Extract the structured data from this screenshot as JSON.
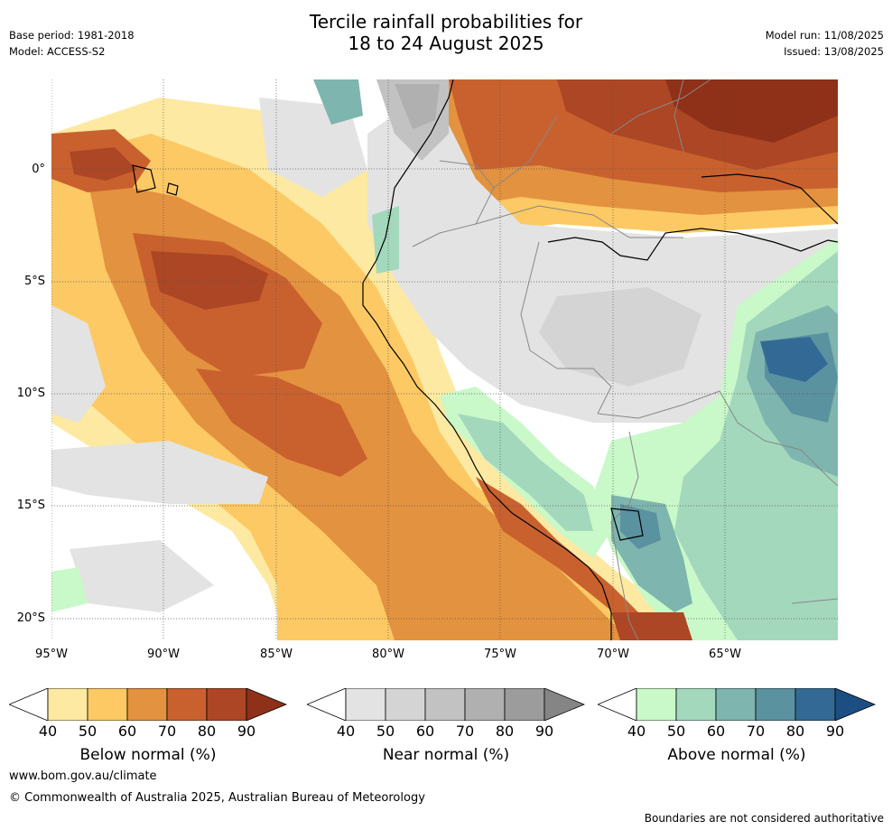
{
  "header": {
    "title_line1": "Tercile rainfall probabilities for",
    "title_line2": "18 to 24 August 2025",
    "base_period": "Base period: 1981-2018",
    "model": "Model: ACCESS-S2",
    "model_run": "Model run: 11/08/2025",
    "issued": "Issued: 13/08/2025"
  },
  "map": {
    "lat_labels": [
      "0°",
      "5°S",
      "10°S",
      "15°S",
      "20°S"
    ],
    "lon_labels": [
      "95°W",
      "90°W",
      "85°W",
      "80°W",
      "75°W",
      "70°W",
      "65°W"
    ],
    "colors": {
      "below": [
        "#fde9a1",
        "#fcc964",
        "#e3923f",
        "#c9612f",
        "#ad4624",
        "#8f3019"
      ],
      "near": [
        "#e3e3e3",
        "#d4d4d4",
        "#c2c2c2",
        "#b0b0b0",
        "#9c9c9c",
        "#858585"
      ],
      "above": [
        "#c9f8c9",
        "#a3d8bd",
        "#7eb5ae",
        "#5a92a0",
        "#336a95",
        "#1c4e84"
      ],
      "coast": "#000000",
      "border": "#888888",
      "grid": "#555555"
    }
  },
  "colorbars": [
    {
      "title": "Below normal (%)",
      "ticks": [
        "40",
        "50",
        "60",
        "70",
        "80",
        "90"
      ]
    },
    {
      "title": "Near normal (%)",
      "ticks": [
        "40",
        "50",
        "60",
        "70",
        "80",
        "90"
      ]
    },
    {
      "title": "Above normal (%)",
      "ticks": [
        "40",
        "50",
        "60",
        "70",
        "80",
        "90"
      ]
    }
  ],
  "footer": {
    "website": "www.bom.gov.au/climate",
    "copyright": "© Commonwealth of Australia 2025, Australian Bureau of Meteorology",
    "disclaimer": "Boundaries are not considered authoritative"
  }
}
